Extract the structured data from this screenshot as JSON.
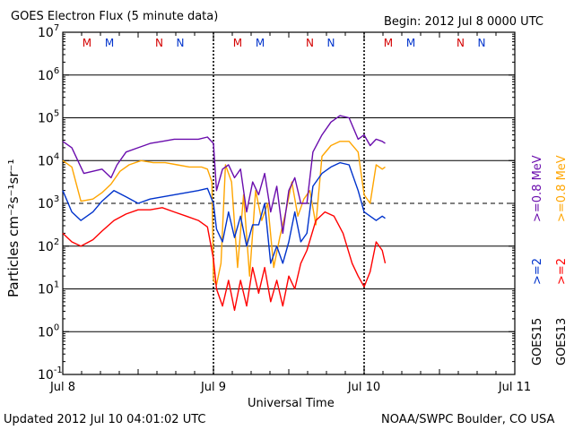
{
  "chart_data": {
    "type": "line",
    "title": "GOES Electron Flux (5 minute data)",
    "begin_label": "Begin: 2012 Jul 8 0000 UTC",
    "xlabel": "Universal Time",
    "ylabel": "Particles cm⁻²s⁻¹sr⁻¹",
    "yscale": "log",
    "ylim_exp": [
      -1,
      7
    ],
    "ytick_exponents": [
      "-1",
      "0",
      "1",
      "2",
      "3",
      "4",
      "5",
      "6",
      "7"
    ],
    "ytick_base": "10",
    "xlim_days": [
      0,
      3
    ],
    "xtick_labels": [
      "Jul 8",
      "Jul 9",
      "Jul 10",
      "Jul 11"
    ],
    "dashed_threshold_exp": 3,
    "markers": [
      {
        "label": "M",
        "day": 0.16,
        "sat": "GOES13"
      },
      {
        "label": "M",
        "day": 0.31,
        "sat": "GOES15"
      },
      {
        "label": "N",
        "day": 0.64,
        "sat": "GOES13"
      },
      {
        "label": "N",
        "day": 0.78,
        "sat": "GOES15"
      },
      {
        "label": "M",
        "day": 1.16,
        "sat": "GOES13"
      },
      {
        "label": "M",
        "day": 1.31,
        "sat": "GOES15"
      },
      {
        "label": "N",
        "day": 1.64,
        "sat": "GOES13"
      },
      {
        "label": "N",
        "day": 1.78,
        "sat": "GOES15"
      },
      {
        "label": "M",
        "day": 2.16,
        "sat": "GOES13"
      },
      {
        "label": "M",
        "day": 2.31,
        "sat": "GOES15"
      },
      {
        "label": "N",
        "day": 2.64,
        "sat": "GOES13"
      },
      {
        "label": "N",
        "day": 2.78,
        "sat": "GOES15"
      }
    ],
    "legend": {
      "left_column": [
        "GOES15",
        ">=2",
        ">=0.8 MeV"
      ],
      "right_column": [
        "GOES13",
        ">=2",
        ">=0.8 MeV"
      ]
    },
    "series": [
      {
        "name": "GOES13 >=0.8 MeV",
        "color": "#ffa500",
        "points": [
          [
            0.0,
            4.0
          ],
          [
            0.06,
            3.85
          ],
          [
            0.12,
            3.05
          ],
          [
            0.2,
            3.1
          ],
          [
            0.26,
            3.25
          ],
          [
            0.32,
            3.45
          ],
          [
            0.38,
            3.75
          ],
          [
            0.44,
            3.9
          ],
          [
            0.52,
            4.0
          ],
          [
            0.6,
            3.95
          ],
          [
            0.68,
            3.95
          ],
          [
            0.76,
            3.9
          ],
          [
            0.84,
            3.85
          ],
          [
            0.92,
            3.85
          ],
          [
            0.96,
            3.8
          ],
          [
            0.99,
            3.5
          ],
          [
            1.0,
            1.2
          ],
          [
            1.02,
            1.1
          ],
          [
            1.05,
            1.6
          ],
          [
            1.08,
            3.9
          ],
          [
            1.12,
            3.5
          ],
          [
            1.16,
            1.5
          ],
          [
            1.2,
            3.2
          ],
          [
            1.24,
            1.3
          ],
          [
            1.28,
            3.3
          ],
          [
            1.32,
            2.6
          ],
          [
            1.36,
            3.0
          ],
          [
            1.4,
            1.5
          ],
          [
            1.44,
            2.2
          ],
          [
            1.48,
            2.8
          ],
          [
            1.52,
            3.5
          ],
          [
            1.56,
            2.7
          ],
          [
            1.6,
            3.1
          ],
          [
            1.64,
            3.3
          ],
          [
            1.68,
            2.5
          ],
          [
            1.72,
            4.1
          ],
          [
            1.78,
            4.35
          ],
          [
            1.84,
            4.45
          ],
          [
            1.9,
            4.45
          ],
          [
            1.96,
            4.2
          ],
          [
            2.0,
            3.2
          ],
          [
            2.04,
            3.0
          ],
          [
            2.08,
            3.9
          ],
          [
            2.12,
            3.8
          ],
          [
            2.14,
            3.85
          ]
        ]
      },
      {
        "name": "GOES15 >=0.8 MeV",
        "color": "#6a0dad",
        "points": [
          [
            0.0,
            4.45
          ],
          [
            0.06,
            4.3
          ],
          [
            0.1,
            4.0
          ],
          [
            0.14,
            3.7
          ],
          [
            0.2,
            3.75
          ],
          [
            0.26,
            3.8
          ],
          [
            0.32,
            3.6
          ],
          [
            0.36,
            3.9
          ],
          [
            0.42,
            4.2
          ],
          [
            0.5,
            4.3
          ],
          [
            0.58,
            4.4
          ],
          [
            0.66,
            4.45
          ],
          [
            0.74,
            4.5
          ],
          [
            0.82,
            4.5
          ],
          [
            0.9,
            4.5
          ],
          [
            0.96,
            4.55
          ],
          [
            1.0,
            4.4
          ],
          [
            1.02,
            3.3
          ],
          [
            1.06,
            3.8
          ],
          [
            1.1,
            3.9
          ],
          [
            1.14,
            3.6
          ],
          [
            1.18,
            3.8
          ],
          [
            1.22,
            2.8
          ],
          [
            1.26,
            3.5
          ],
          [
            1.3,
            3.2
          ],
          [
            1.34,
            3.7
          ],
          [
            1.38,
            2.8
          ],
          [
            1.42,
            3.4
          ],
          [
            1.46,
            2.3
          ],
          [
            1.5,
            3.3
          ],
          [
            1.54,
            3.6
          ],
          [
            1.58,
            3.0
          ],
          [
            1.62,
            3.0
          ],
          [
            1.66,
            4.2
          ],
          [
            1.72,
            4.6
          ],
          [
            1.78,
            4.9
          ],
          [
            1.84,
            5.05
          ],
          [
            1.9,
            5.0
          ],
          [
            1.96,
            4.5
          ],
          [
            2.0,
            4.6
          ],
          [
            2.04,
            4.35
          ],
          [
            2.08,
            4.5
          ],
          [
            2.12,
            4.45
          ],
          [
            2.14,
            4.4
          ]
        ]
      },
      {
        "name": "GOES15 >=2 MeV",
        "color": "#0033cc",
        "points": [
          [
            0.0,
            3.3
          ],
          [
            0.06,
            2.8
          ],
          [
            0.12,
            2.6
          ],
          [
            0.2,
            2.8
          ],
          [
            0.26,
            3.05
          ],
          [
            0.34,
            3.3
          ],
          [
            0.42,
            3.15
          ],
          [
            0.5,
            3.0
          ],
          [
            0.58,
            3.1
          ],
          [
            0.66,
            3.15
          ],
          [
            0.74,
            3.2
          ],
          [
            0.82,
            3.25
          ],
          [
            0.9,
            3.3
          ],
          [
            0.96,
            3.35
          ],
          [
            1.0,
            3.0
          ],
          [
            1.02,
            2.4
          ],
          [
            1.06,
            2.1
          ],
          [
            1.1,
            2.8
          ],
          [
            1.14,
            2.2
          ],
          [
            1.18,
            2.7
          ],
          [
            1.22,
            2.0
          ],
          [
            1.26,
            2.5
          ],
          [
            1.3,
            2.5
          ],
          [
            1.34,
            3.0
          ],
          [
            1.38,
            1.6
          ],
          [
            1.42,
            2.0
          ],
          [
            1.46,
            1.6
          ],
          [
            1.5,
            2.1
          ],
          [
            1.54,
            2.8
          ],
          [
            1.58,
            2.1
          ],
          [
            1.62,
            2.3
          ],
          [
            1.66,
            3.4
          ],
          [
            1.72,
            3.7
          ],
          [
            1.78,
            3.85
          ],
          [
            1.84,
            3.95
          ],
          [
            1.9,
            3.9
          ],
          [
            1.96,
            3.3
          ],
          [
            2.0,
            2.8
          ],
          [
            2.04,
            2.7
          ],
          [
            2.08,
            2.6
          ],
          [
            2.12,
            2.7
          ],
          [
            2.14,
            2.65
          ]
        ]
      },
      {
        "name": "GOES13 >=2 MeV",
        "color": "#ff0000",
        "points": [
          [
            0.0,
            2.3
          ],
          [
            0.06,
            2.1
          ],
          [
            0.12,
            2.0
          ],
          [
            0.2,
            2.15
          ],
          [
            0.26,
            2.35
          ],
          [
            0.34,
            2.6
          ],
          [
            0.42,
            2.75
          ],
          [
            0.5,
            2.85
          ],
          [
            0.58,
            2.85
          ],
          [
            0.66,
            2.9
          ],
          [
            0.74,
            2.8
          ],
          [
            0.82,
            2.7
          ],
          [
            0.9,
            2.6
          ],
          [
            0.96,
            2.45
          ],
          [
            1.0,
            1.7
          ],
          [
            1.02,
            1.0
          ],
          [
            1.06,
            0.6
          ],
          [
            1.1,
            1.2
          ],
          [
            1.14,
            0.5
          ],
          [
            1.18,
            1.2
          ],
          [
            1.22,
            0.6
          ],
          [
            1.26,
            1.5
          ],
          [
            1.3,
            0.9
          ],
          [
            1.34,
            1.5
          ],
          [
            1.38,
            0.7
          ],
          [
            1.42,
            1.2
          ],
          [
            1.46,
            0.6
          ],
          [
            1.5,
            1.3
          ],
          [
            1.54,
            1.0
          ],
          [
            1.58,
            1.6
          ],
          [
            1.62,
            1.9
          ],
          [
            1.68,
            2.6
          ],
          [
            1.74,
            2.8
          ],
          [
            1.8,
            2.7
          ],
          [
            1.86,
            2.3
          ],
          [
            1.92,
            1.6
          ],
          [
            1.96,
            1.3
          ],
          [
            2.0,
            1.05
          ],
          [
            2.04,
            1.4
          ],
          [
            2.08,
            2.1
          ],
          [
            2.12,
            1.9
          ],
          [
            2.14,
            1.6
          ]
        ]
      }
    ]
  },
  "footer": {
    "updated": "Updated 2012 Jul 10 04:01:02 UTC",
    "credit": "NOAA/SWPC Boulder, CO USA"
  }
}
